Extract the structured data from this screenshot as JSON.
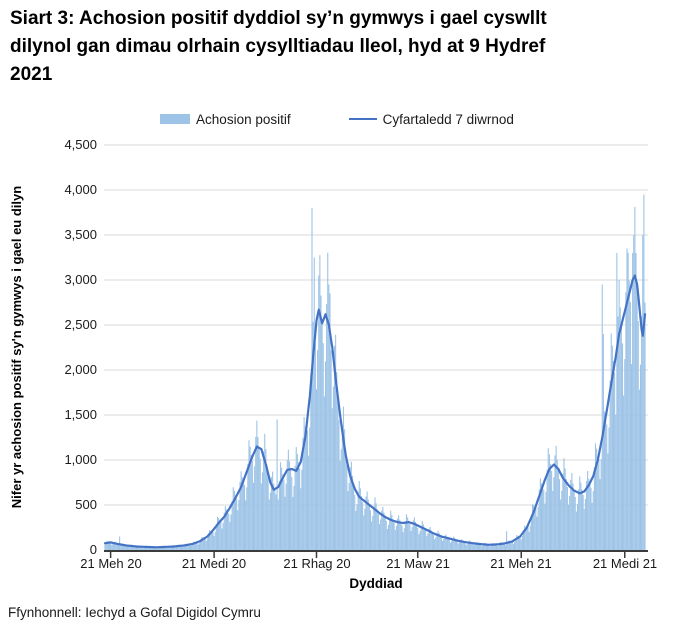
{
  "title": "Siart 3: Achosion positif dyddiol sy’n gymwys i gael cyswllt dilynol gan dimau olrhain cysylltiadau lleol, hyd at 9 Hydref 2021",
  "source": "Ffynhonnell: Iechyd a Gofal Digidol Cymru",
  "legend": {
    "bar_label": "Achosion positif",
    "line_label": "Cyfartaledd 7 diwrnod"
  },
  "colors": {
    "bar": "#9DC3E6",
    "line": "#4472C4",
    "grid": "#D9D9D9",
    "axis": "#3b3b3b"
  },
  "chart_data": {
    "type": "bar+line",
    "title": "Siart 3: Achosion positif dyddiol sy’n gymwys i gael cyswllt dilynol gan dimau olrhain cysylltiadau lleol, hyd at 9 Hydref 2021",
    "xlabel": "Dyddiad",
    "ylabel": "Nifer yr achosion positif sy'n gymwys i gael eu dilyn",
    "ylim": [
      0,
      4500
    ],
    "ytick_step": 500,
    "ytick_labels": [
      "0",
      "500",
      "1,000",
      "1,500",
      "2,000",
      "2,500",
      "3,000",
      "3,500",
      "4,000",
      "4,500"
    ],
    "xtick_labels": [
      "21 Meh 20",
      "21 Medi 20",
      "21 Rhag 20",
      "21 Maw 21",
      "21 Meh 21",
      "21 Medi 21"
    ],
    "xtick_dates": [
      "2020-06-21",
      "2020-09-21",
      "2020-12-21",
      "2021-03-21",
      "2021-06-21",
      "2021-09-21"
    ],
    "date_range": [
      "2020-06-16",
      "2021-10-09"
    ],
    "grid": true,
    "legend_position": "top",
    "series_names": [
      "Achosion positif",
      "Cyfartaledd 7 diwrnod"
    ],
    "avg_points": [
      [
        "2020-06-16",
        75
      ],
      [
        "2020-06-21",
        85
      ],
      [
        "2020-06-28",
        65
      ],
      [
        "2020-07-05",
        50
      ],
      [
        "2020-07-15",
        38
      ],
      [
        "2020-08-01",
        30
      ],
      [
        "2020-08-15",
        38
      ],
      [
        "2020-08-25",
        50
      ],
      [
        "2020-09-01",
        65
      ],
      [
        "2020-09-08",
        95
      ],
      [
        "2020-09-15",
        150
      ],
      [
        "2020-09-20",
        220
      ],
      [
        "2020-09-25",
        300
      ],
      [
        "2020-09-30",
        370
      ],
      [
        "2020-10-05",
        470
      ],
      [
        "2020-10-10",
        580
      ],
      [
        "2020-10-15",
        700
      ],
      [
        "2020-10-20",
        870
      ],
      [
        "2020-10-25",
        1040
      ],
      [
        "2020-10-29",
        1150
      ],
      [
        "2020-11-02",
        1120
      ],
      [
        "2020-11-06",
        950
      ],
      [
        "2020-11-10",
        750
      ],
      [
        "2020-11-13",
        670
      ],
      [
        "2020-11-17",
        700
      ],
      [
        "2020-11-21",
        800
      ],
      [
        "2020-11-25",
        890
      ],
      [
        "2020-11-29",
        900
      ],
      [
        "2020-12-03",
        880
      ],
      [
        "2020-12-07",
        980
      ],
      [
        "2020-12-11",
        1250
      ],
      [
        "2020-12-15",
        1700
      ],
      [
        "2020-12-18",
        2150
      ],
      [
        "2020-12-21",
        2550
      ],
      [
        "2020-12-23",
        2670
      ],
      [
        "2020-12-26",
        2520
      ],
      [
        "2020-12-29",
        2620
      ],
      [
        "2021-01-01",
        2500
      ],
      [
        "2021-01-04",
        2250
      ],
      [
        "2021-01-08",
        1800
      ],
      [
        "2021-01-12",
        1400
      ],
      [
        "2021-01-16",
        1050
      ],
      [
        "2021-01-20",
        820
      ],
      [
        "2021-01-24",
        680
      ],
      [
        "2021-01-28",
        590
      ],
      [
        "2021-02-01",
        550
      ],
      [
        "2021-02-06",
        500
      ],
      [
        "2021-02-11",
        450
      ],
      [
        "2021-02-16",
        400
      ],
      [
        "2021-02-21",
        360
      ],
      [
        "2021-02-26",
        330
      ],
      [
        "2021-03-03",
        310
      ],
      [
        "2021-03-08",
        300
      ],
      [
        "2021-03-13",
        310
      ],
      [
        "2021-03-18",
        290
      ],
      [
        "2021-03-23",
        260
      ],
      [
        "2021-03-28",
        230
      ],
      [
        "2021-04-04",
        185
      ],
      [
        "2021-04-11",
        150
      ],
      [
        "2021-04-18",
        128
      ],
      [
        "2021-04-25",
        105
      ],
      [
        "2021-05-02",
        88
      ],
      [
        "2021-05-09",
        75
      ],
      [
        "2021-05-16",
        65
      ],
      [
        "2021-05-23",
        58
      ],
      [
        "2021-05-30",
        62
      ],
      [
        "2021-06-06",
        72
      ],
      [
        "2021-06-13",
        95
      ],
      [
        "2021-06-20",
        150
      ],
      [
        "2021-06-26",
        250
      ],
      [
        "2021-07-02",
        420
      ],
      [
        "2021-07-07",
        600
      ],
      [
        "2021-07-12",
        780
      ],
      [
        "2021-07-16",
        900
      ],
      [
        "2021-07-20",
        950
      ],
      [
        "2021-07-24",
        900
      ],
      [
        "2021-07-28",
        800
      ],
      [
        "2021-08-02",
        720
      ],
      [
        "2021-08-07",
        660
      ],
      [
        "2021-08-12",
        630
      ],
      [
        "2021-08-16",
        650
      ],
      [
        "2021-08-20",
        720
      ],
      [
        "2021-08-24",
        820
      ],
      [
        "2021-08-28",
        1000
      ],
      [
        "2021-09-01",
        1250
      ],
      [
        "2021-09-05",
        1550
      ],
      [
        "2021-09-09",
        1850
      ],
      [
        "2021-09-13",
        2150
      ],
      [
        "2021-09-16",
        2400
      ],
      [
        "2021-09-19",
        2550
      ],
      [
        "2021-09-22",
        2700
      ],
      [
        "2021-09-25",
        2850
      ],
      [
        "2021-09-28",
        3000
      ],
      [
        "2021-09-30",
        3050
      ],
      [
        "2021-10-02",
        2950
      ],
      [
        "2021-10-04",
        2700
      ],
      [
        "2021-10-06",
        2450
      ],
      [
        "2021-10-07",
        2380
      ],
      [
        "2021-10-08",
        2500
      ],
      [
        "2021-10-09",
        2620
      ]
    ],
    "bar_day_factors": [
      0.8,
      1.06,
      1.3,
      1.18,
      1.05,
      0.95,
      0.7,
      0.85,
      1.12,
      1.25,
      1.1,
      1.0,
      0.9,
      0.66
    ],
    "bar_spikes": [
      [
        "2020-06-29",
        150
      ],
      [
        "2020-11-16",
        1450
      ],
      [
        "2020-12-17",
        3800
      ],
      [
        "2020-12-19",
        3250
      ],
      [
        "2020-12-23",
        3050
      ],
      [
        "2021-01-02",
        2850
      ],
      [
        "2021-06-08",
        210
      ],
      [
        "2021-09-01",
        2950
      ],
      [
        "2021-09-02",
        2400
      ],
      [
        "2021-09-14",
        3300
      ],
      [
        "2021-09-23",
        3350
      ],
      [
        "2021-09-28",
        3300
      ],
      [
        "2021-09-29",
        3500
      ],
      [
        "2021-10-07",
        3500
      ],
      [
        "2021-10-08",
        3950
      ]
    ]
  }
}
